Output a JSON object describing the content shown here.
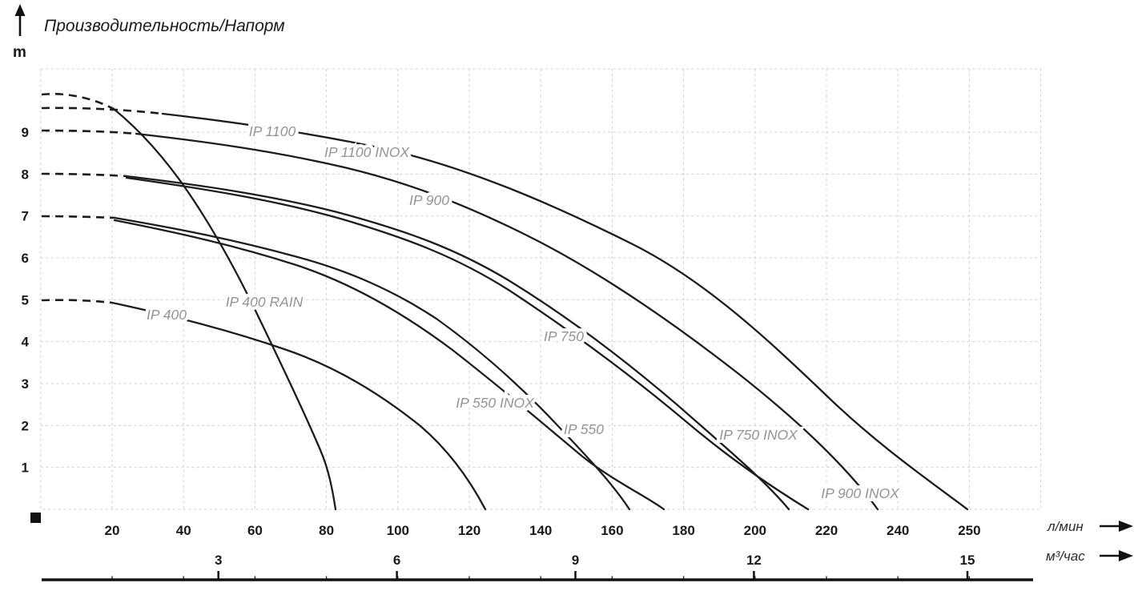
{
  "title": "Производительность/Напорм",
  "y_axis": {
    "unit": "m",
    "ticks": [
      "9",
      "8",
      "7",
      "6",
      "5",
      "4",
      "3",
      "2",
      "1"
    ]
  },
  "x_axis_lmin": {
    "unit": "л/мин",
    "ticks": [
      "20",
      "40",
      "60",
      "80",
      "100",
      "120",
      "140",
      "160",
      "180",
      "200",
      "220",
      "240",
      "250"
    ]
  },
  "x_axis_m3h": {
    "unit": "м³/час",
    "ticks": [
      "3",
      "6",
      "9",
      "12",
      "15"
    ]
  },
  "colors": {
    "curve": "#1c1c1c",
    "grid": "#cfcfcf",
    "curve_label": "#949494",
    "text": "#1a1a1a"
  },
  "chart_data": {
    "type": "line",
    "title": "Производительность/Напорм",
    "ylabel": "m",
    "xlabel_primary": "л/мин",
    "xlabel_secondary": "м³/час",
    "x_ticks_lmin": [
      20,
      40,
      60,
      80,
      100,
      120,
      140,
      160,
      180,
      200,
      220,
      240,
      250
    ],
    "x_ticks_m3h": [
      3,
      6,
      9,
      12,
      15
    ],
    "y_ticks": [
      1,
      2,
      3,
      4,
      5,
      6,
      7,
      8,
      9
    ],
    "ylim": [
      0,
      10.5
    ],
    "grid": "dashed light gray",
    "legend_position": "labels on curves",
    "style_note": "each curve starts with a dashed segment at low flow, then solid",
    "series": [
      {
        "name": "IP 1100",
        "points_lmin_m": [
          [
            0,
            9.6
          ],
          [
            20,
            9.5
          ],
          [
            34,
            9.4
          ],
          [
            56,
            9.2
          ],
          [
            78,
            8.9
          ],
          [
            100,
            8.5
          ],
          [
            123,
            7.9
          ],
          [
            145,
            7.2
          ],
          [
            168,
            6.3
          ],
          [
            190,
            4.9
          ],
          [
            212,
            3.3
          ],
          [
            235,
            1.6
          ],
          [
            259,
            0
          ]
        ]
      },
      {
        "name": "IP 1100 INOX",
        "points_lmin_m": [
          [
            0,
            9.6
          ],
          [
            20,
            9.5
          ],
          [
            34,
            9.4
          ],
          [
            56,
            9.2
          ],
          [
            78,
            8.9
          ],
          [
            100,
            8.5
          ],
          [
            123,
            7.9
          ],
          [
            145,
            7.2
          ],
          [
            168,
            6.3
          ],
          [
            190,
            4.9
          ],
          [
            212,
            3.3
          ],
          [
            235,
            1.6
          ],
          [
            259,
            0
          ]
        ]
      },
      {
        "name": "IP 900",
        "points_lmin_m": [
          [
            0,
            9.0
          ],
          [
            27,
            9.0
          ],
          [
            50,
            8.6
          ],
          [
            72,
            8.3
          ],
          [
            94,
            7.8
          ],
          [
            115,
            7.3
          ],
          [
            137,
            6.5
          ],
          [
            160,
            5.5
          ],
          [
            180,
            4.4
          ],
          [
            201,
            2.9
          ],
          [
            220,
            1.3
          ],
          [
            234,
            0
          ]
        ]
      },
      {
        "name": "IP 900 INOX",
        "points_lmin_m": [
          [
            0,
            9.0
          ],
          [
            27,
            9.0
          ],
          [
            50,
            8.6
          ],
          [
            72,
            8.3
          ],
          [
            94,
            7.8
          ],
          [
            115,
            7.3
          ],
          [
            137,
            6.5
          ],
          [
            160,
            5.5
          ],
          [
            180,
            4.4
          ],
          [
            201,
            2.9
          ],
          [
            220,
            1.3
          ],
          [
            234,
            0
          ]
        ]
      },
      {
        "name": "IP 750",
        "points_lmin_m": [
          [
            0,
            8.0
          ],
          [
            24,
            8.0
          ],
          [
            47,
            7.7
          ],
          [
            70,
            7.4
          ],
          [
            92,
            6.9
          ],
          [
            112,
            6.3
          ],
          [
            131,
            5.5
          ],
          [
            150,
            4.4
          ],
          [
            168,
            3.3
          ],
          [
            186,
            2.1
          ],
          [
            200,
            1.0
          ],
          [
            209,
            0
          ]
        ]
      },
      {
        "name": "IP 750 INOX",
        "points_lmin_m": [
          [
            0,
            8.0
          ],
          [
            24,
            8.0
          ],
          [
            47,
            7.6
          ],
          [
            70,
            7.3
          ],
          [
            92,
            6.8
          ],
          [
            112,
            6.2
          ],
          [
            131,
            5.3
          ],
          [
            152,
            4.1
          ],
          [
            172,
            2.9
          ],
          [
            192,
            1.6
          ],
          [
            215,
            0
          ]
        ]
      },
      {
        "name": "IP 550 INOX",
        "points_lmin_m": [
          [
            0,
            7.0
          ],
          [
            21,
            7.0
          ],
          [
            44,
            6.6
          ],
          [
            68,
            6.2
          ],
          [
            89,
            5.5
          ],
          [
            106,
            4.7
          ],
          [
            122,
            3.9
          ],
          [
            136,
            3.0
          ],
          [
            149,
            2.0
          ],
          [
            160,
            1.0
          ],
          [
            165,
            0
          ]
        ]
      },
      {
        "name": "IP 550",
        "points_lmin_m": [
          [
            0,
            6.9
          ],
          [
            21,
            6.9
          ],
          [
            44,
            6.5
          ],
          [
            68,
            6.0
          ],
          [
            89,
            5.3
          ],
          [
            108,
            4.3
          ],
          [
            124,
            3.4
          ],
          [
            139,
            2.4
          ],
          [
            152,
            1.4
          ],
          [
            166,
            0.5
          ],
          [
            174,
            0
          ]
        ]
      },
      {
        "name": "IP 400",
        "points_lmin_m": [
          [
            0,
            5.0
          ],
          [
            20,
            4.9
          ],
          [
            42,
            4.5
          ],
          [
            62,
            4.0
          ],
          [
            80,
            3.4
          ],
          [
            98,
            2.5
          ],
          [
            112,
            1.6
          ],
          [
            124,
            0
          ]
        ]
      },
      {
        "name": "IP 400 RAIN",
        "points_lmin_m": [
          [
            0,
            9.9
          ],
          [
            12,
            9.8
          ],
          [
            20,
            9.6
          ],
          [
            30,
            8.9
          ],
          [
            42,
            7.7
          ],
          [
            53,
            5.9
          ],
          [
            64,
            3.9
          ],
          [
            74,
            1.9
          ],
          [
            82,
            0
          ]
        ]
      }
    ]
  }
}
